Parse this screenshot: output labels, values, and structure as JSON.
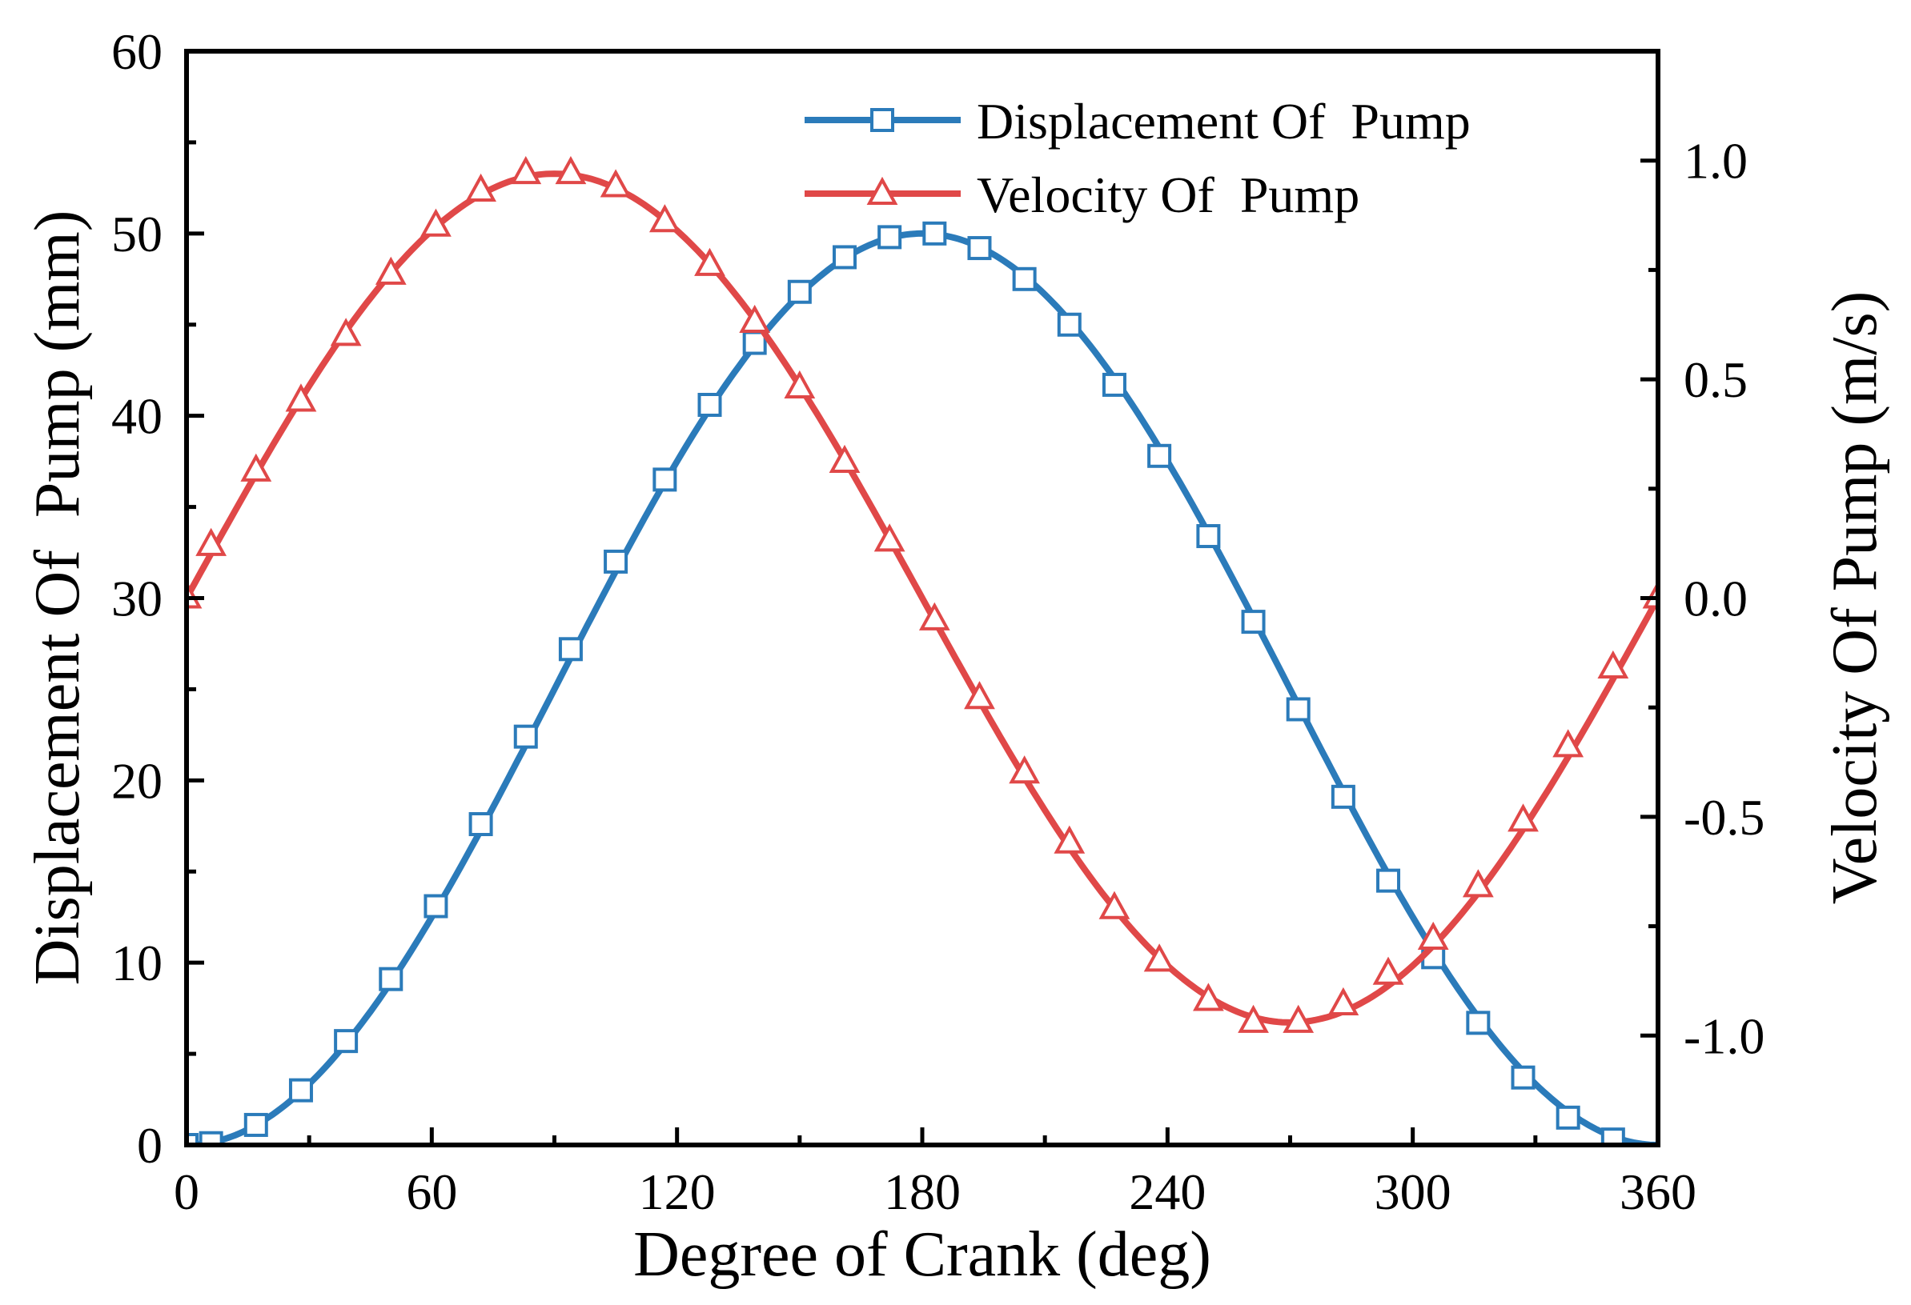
{
  "chart_data": {
    "type": "line",
    "title": "",
    "xlabel": "Degree of Crank (deg)",
    "ylabel": "Displacement Of  Pump (mm)",
    "y2label": "Velocity Of Pump (m/s)",
    "xlim": [
      0,
      360
    ],
    "ylim": [
      0,
      60
    ],
    "y2lim": [
      -1.25,
      1.25
    ],
    "xticks": [
      0,
      60,
      120,
      180,
      240,
      300,
      360
    ],
    "xtick_labels": [
      "0",
      "60",
      "120",
      "180",
      "240",
      "300",
      "360"
    ],
    "yticks": [
      0,
      10,
      20,
      30,
      40,
      50,
      60
    ],
    "ytick_labels": [
      "0",
      "10",
      "20",
      "30",
      "40",
      "50",
      "60"
    ],
    "y2ticks": [
      -1.0,
      -0.5,
      0.0,
      0.5,
      1.0
    ],
    "y2tick_labels": [
      "-1.0",
      "-0.5",
      "0.0",
      "0.5",
      "1.0"
    ],
    "grid": false,
    "legend_position": "top-right",
    "series": [
      {
        "name": "Displacement Of  Pump",
        "axis": "left",
        "color": "#2b7bba",
        "marker": "square",
        "x": [
          0,
          6,
          17,
          28,
          39,
          50,
          61,
          72,
          83,
          94,
          105,
          117,
          128,
          139,
          150,
          161,
          172,
          183,
          194,
          205,
          216,
          227,
          238,
          250,
          261,
          272,
          283,
          294,
          305,
          316,
          327,
          338,
          349
        ],
        "values": [
          0,
          0.1,
          1.1,
          3.0,
          5.7,
          9.1,
          13.1,
          17.6,
          22.4,
          27.2,
          32.0,
          36.5,
          40.6,
          44.0,
          46.8,
          48.7,
          49.8,
          50.0,
          49.2,
          47.5,
          45.0,
          41.7,
          37.8,
          33.4,
          28.7,
          23.9,
          19.1,
          14.5,
          10.3,
          6.7,
          3.7,
          1.5,
          0.3
        ]
      },
      {
        "name": "Velocity Of  Pump",
        "axis": "right",
        "color": "#e04848",
        "marker": "triangle",
        "x": [
          0,
          6,
          17,
          28,
          39,
          50,
          61,
          72,
          83,
          94,
          105,
          117,
          128,
          139,
          150,
          161,
          172,
          183,
          194,
          205,
          216,
          227,
          238,
          250,
          261,
          272,
          283,
          294,
          305,
          316,
          327,
          338,
          349,
          360
        ],
        "values": [
          0.0,
          0.12,
          0.29,
          0.45,
          0.6,
          0.74,
          0.85,
          0.93,
          0.97,
          0.97,
          0.94,
          0.86,
          0.76,
          0.63,
          0.48,
          0.31,
          0.13,
          -0.05,
          -0.23,
          -0.4,
          -0.56,
          -0.71,
          -0.83,
          -0.92,
          -0.97,
          -0.97,
          -0.93,
          -0.86,
          -0.78,
          -0.66,
          -0.51,
          -0.34,
          -0.16,
          0.0
        ]
      }
    ]
  }
}
